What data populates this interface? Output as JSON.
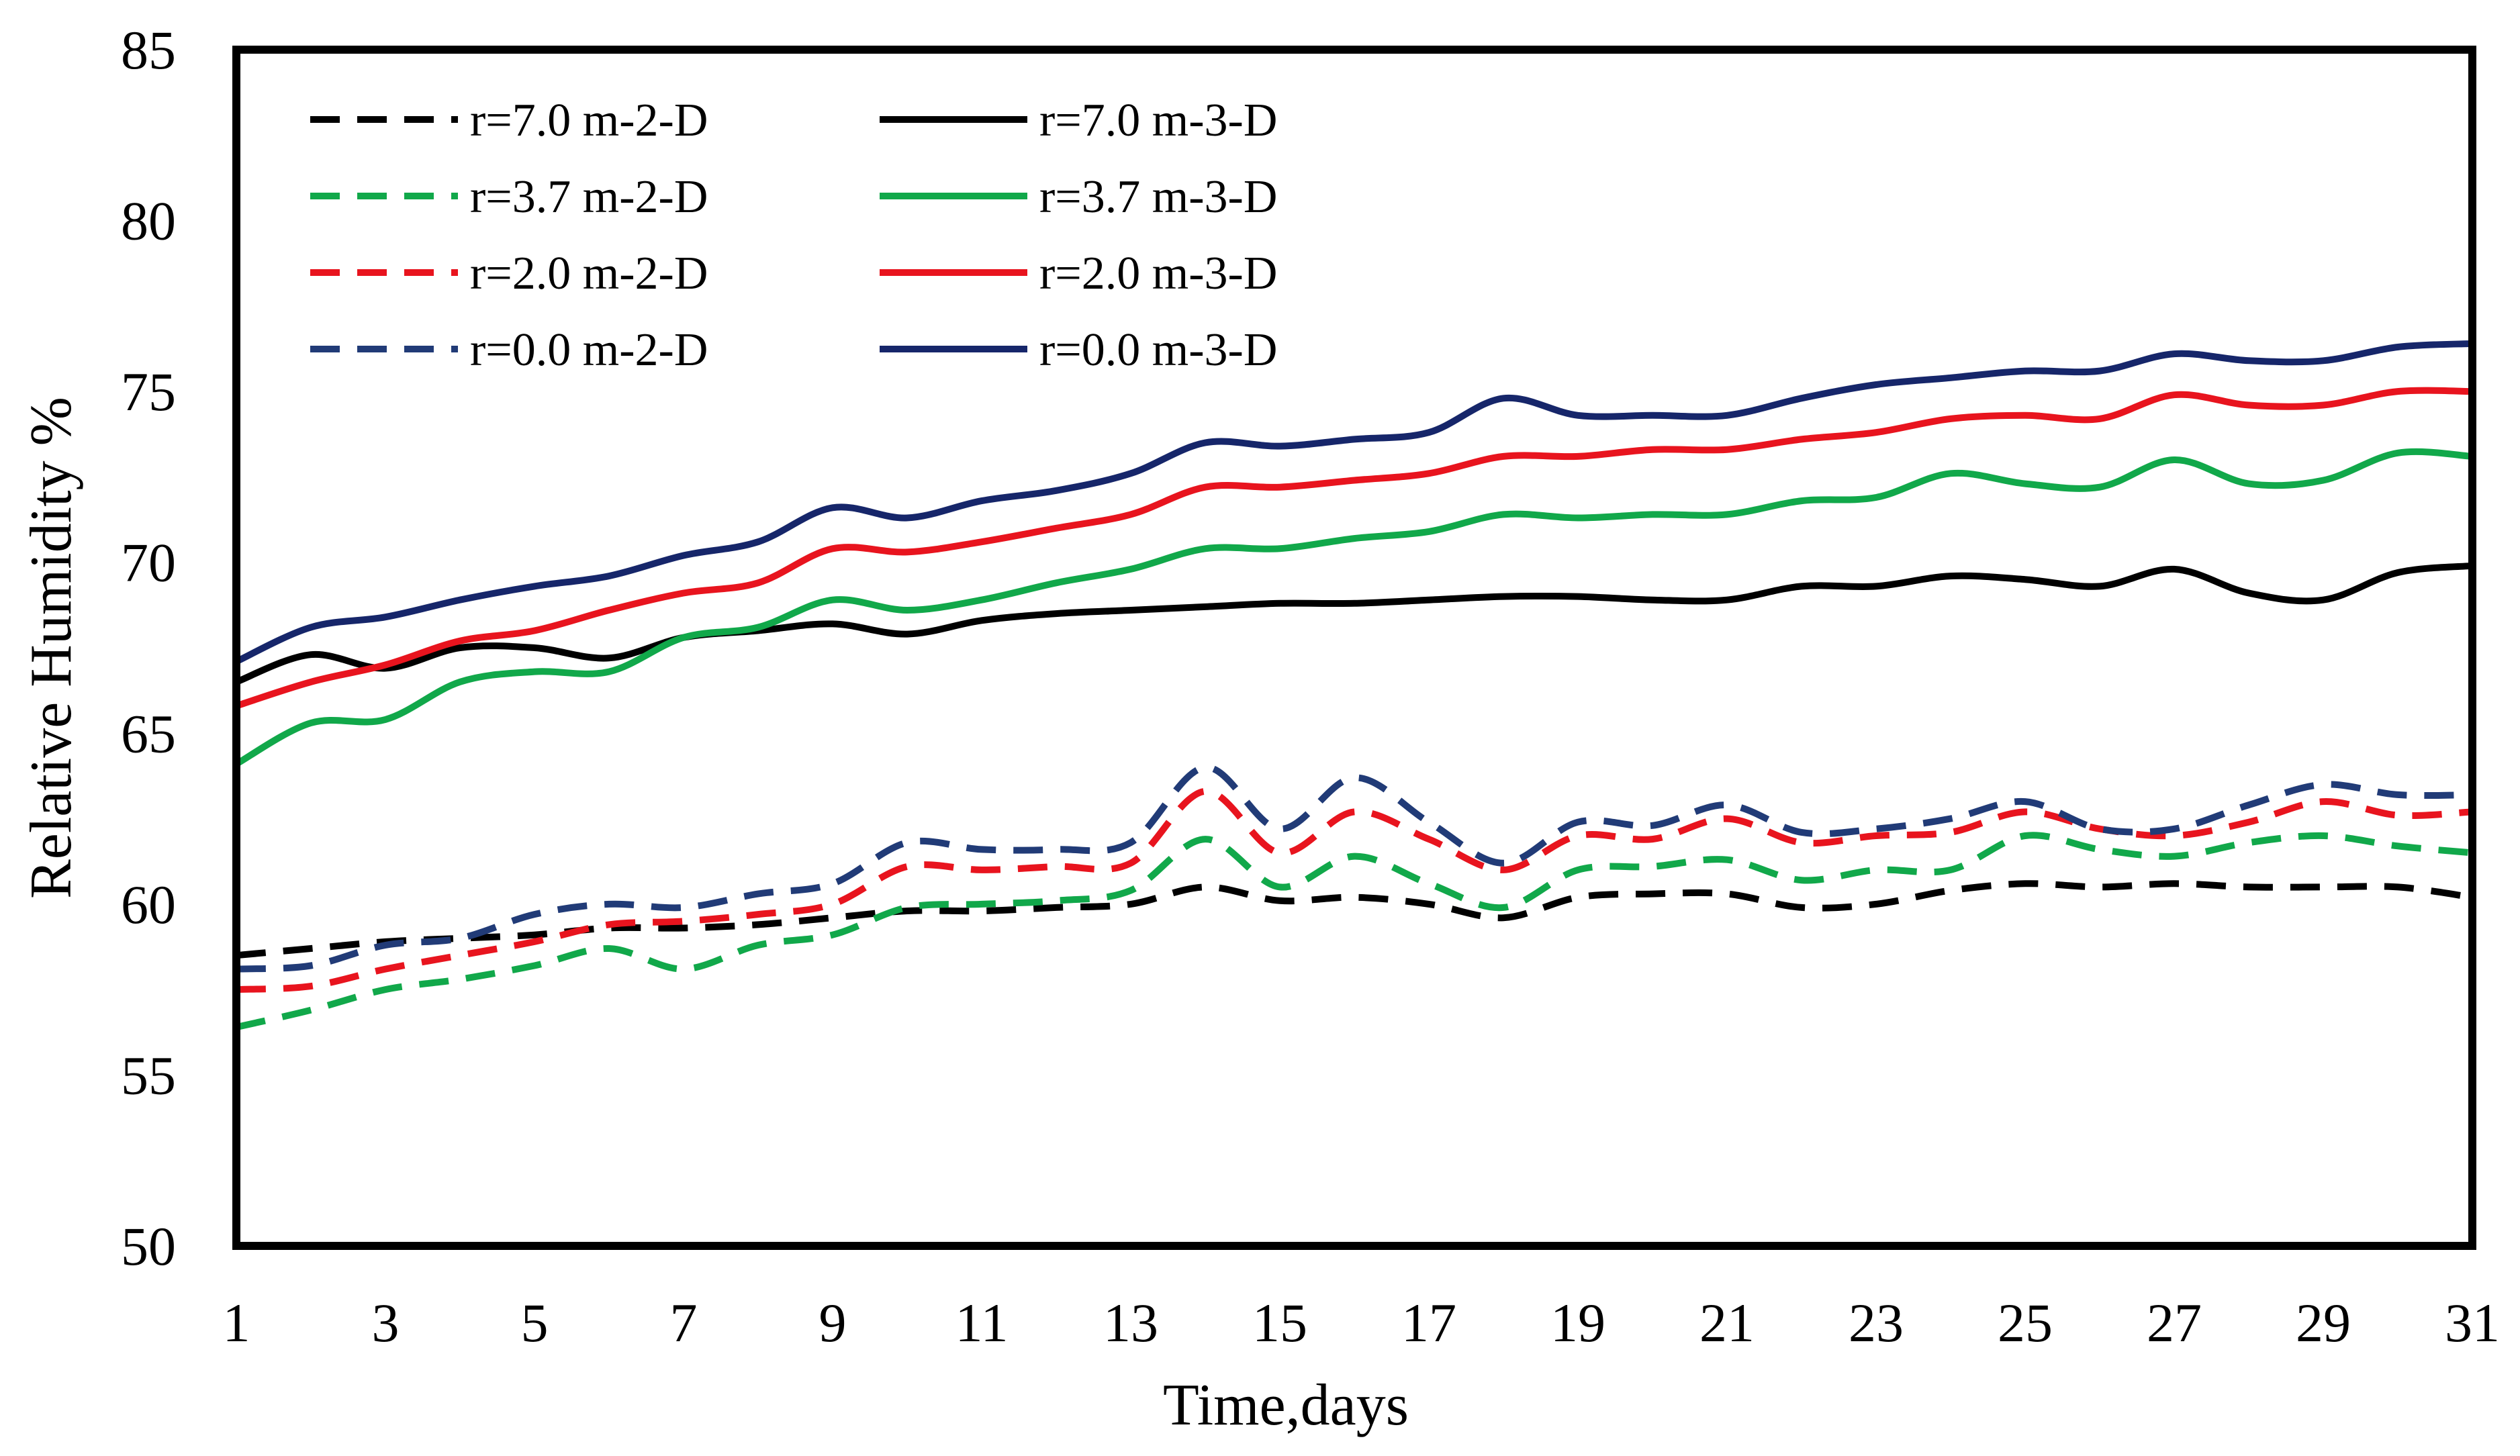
{
  "chart_data": {
    "type": "line",
    "title": "",
    "xlabel": "Time,days",
    "ylabel": "Relative Humidity %",
    "xlim": [
      1,
      31
    ],
    "ylim": [
      50,
      85
    ],
    "xticks": [
      1,
      3,
      5,
      7,
      9,
      11,
      13,
      15,
      17,
      19,
      21,
      23,
      25,
      27,
      29,
      31
    ],
    "yticks": [
      50,
      55,
      60,
      65,
      70,
      75,
      80,
      85
    ],
    "grid": false,
    "legend_position": "top-left",
    "x": [
      1,
      2,
      3,
      4,
      5,
      6,
      7,
      8,
      9,
      10,
      11,
      12,
      13,
      14,
      15,
      16,
      17,
      18,
      19,
      20,
      21,
      22,
      23,
      24,
      25,
      26,
      27,
      28,
      29,
      30,
      31
    ],
    "series": [
      {
        "name": "r=7.0 m-2-D",
        "color": "#000000",
        "dash": true,
        "values": [
          58.5,
          58.7,
          58.9,
          59.0,
          59.1,
          59.3,
          59.3,
          59.4,
          59.6,
          59.8,
          59.8,
          59.9,
          60.0,
          60.5,
          60.1,
          60.2,
          60.0,
          59.6,
          60.2,
          60.3,
          60.3,
          59.9,
          60.0,
          60.4,
          60.6,
          60.5,
          60.6,
          60.5,
          60.5,
          60.5,
          60.2
        ]
      },
      {
        "name": "r=7.0 m-3-D",
        "color": "#000000",
        "dash": false,
        "values": [
          66.5,
          67.3,
          66.9,
          67.5,
          67.5,
          67.2,
          67.8,
          68.0,
          68.2,
          67.9,
          68.3,
          68.5,
          68.6,
          68.7,
          68.8,
          68.8,
          68.9,
          69.0,
          69.0,
          68.9,
          68.9,
          69.3,
          69.3,
          69.6,
          69.5,
          69.3,
          69.8,
          69.1,
          68.9,
          69.7,
          69.9
        ]
      },
      {
        "name": "r=3.7 m-2-D",
        "color": "#11a84a",
        "dash": true,
        "values": [
          56.4,
          56.9,
          57.5,
          57.8,
          58.2,
          58.7,
          58.1,
          58.8,
          59.1,
          59.9,
          60.0,
          60.1,
          60.4,
          61.9,
          60.5,
          61.4,
          60.6,
          59.9,
          61.0,
          61.1,
          61.3,
          60.7,
          61.0,
          61.0,
          62.0,
          61.6,
          61.4,
          61.8,
          62.0,
          61.7,
          61.5
        ]
      },
      {
        "name": "r=3.7 m-3-D",
        "color": "#11a84a",
        "dash": false,
        "values": [
          64.1,
          65.3,
          65.4,
          66.5,
          66.8,
          66.8,
          67.8,
          68.1,
          68.9,
          68.6,
          68.9,
          69.4,
          69.8,
          70.4,
          70.4,
          70.7,
          70.9,
          71.4,
          71.3,
          71.4,
          71.4,
          71.8,
          71.9,
          72.6,
          72.3,
          72.2,
          73.0,
          72.3,
          72.4,
          73.2,
          73.1
        ]
      },
      {
        "name": "r=2.0 m-2-D",
        "color": "#e8141e",
        "dash": true,
        "values": [
          57.5,
          57.6,
          58.1,
          58.5,
          58.9,
          59.4,
          59.5,
          59.7,
          60.0,
          61.1,
          61.0,
          61.1,
          61.2,
          63.3,
          61.5,
          62.7,
          61.9,
          61.0,
          62.0,
          61.9,
          62.5,
          61.8,
          62.0,
          62.1,
          62.7,
          62.2,
          62.0,
          62.4,
          63.0,
          62.6,
          62.7
        ]
      },
      {
        "name": "r=2.0 m-3-D",
        "color": "#e8141e",
        "dash": false,
        "values": [
          65.8,
          66.5,
          67.0,
          67.7,
          68.0,
          68.6,
          69.1,
          69.4,
          70.4,
          70.3,
          70.6,
          71.0,
          71.4,
          72.2,
          72.2,
          72.4,
          72.6,
          73.1,
          73.1,
          73.3,
          73.3,
          73.6,
          73.8,
          74.2,
          74.3,
          74.2,
          74.9,
          74.6,
          74.6,
          75.0,
          75.0
        ]
      },
      {
        "name": "r=0.0 m-2-D",
        "color": "#213b77",
        "dash": true,
        "values": [
          58.1,
          58.2,
          58.8,
          59.0,
          59.7,
          60.0,
          59.9,
          60.3,
          60.6,
          61.8,
          61.6,
          61.6,
          61.8,
          64.0,
          62.2,
          63.7,
          62.4,
          61.2,
          62.4,
          62.3,
          62.9,
          62.1,
          62.2,
          62.5,
          63.0,
          62.2,
          62.2,
          62.9,
          63.5,
          63.2,
          63.2
        ]
      },
      {
        "name": "r=0.0 m-3-D",
        "color": "#16266a",
        "dash": false,
        "values": [
          67.1,
          68.1,
          68.4,
          68.9,
          69.3,
          69.6,
          70.2,
          70.6,
          71.6,
          71.3,
          71.8,
          72.1,
          72.6,
          73.5,
          73.4,
          73.6,
          73.8,
          74.8,
          74.3,
          74.3,
          74.3,
          74.8,
          75.2,
          75.4,
          75.6,
          75.6,
          76.1,
          75.9,
          75.9,
          76.3,
          76.4
        ]
      }
    ],
    "legend_order": [
      0,
      1,
      2,
      3,
      4,
      5,
      6,
      7
    ]
  }
}
